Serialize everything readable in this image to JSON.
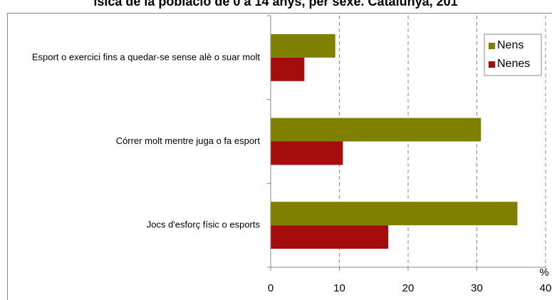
{
  "chart_data": {
    "type": "barh",
    "title": "ísica de la població de 0 a 14 anys, per sexe. Catalunya, 201",
    "categories": [
      "Esport o exercici fins a quedar-se sense alè o suar molt",
      "Córrer molt mentre juga o fa esport",
      "Jocs d'esforç físic o esports"
    ],
    "series": [
      {
        "name": "Nens",
        "color": "#7f7f00",
        "values": [
          9.4,
          30.6,
          35.9
        ]
      },
      {
        "name": "Nenes",
        "color": "#a50d0d",
        "values": [
          4.9,
          10.5,
          17.1
        ]
      }
    ],
    "xlabel": "%",
    "xlim": [
      0,
      40
    ],
    "xticks": [
      0,
      10,
      20,
      30,
      40
    ],
    "grid": true,
    "legend": "top-right"
  }
}
